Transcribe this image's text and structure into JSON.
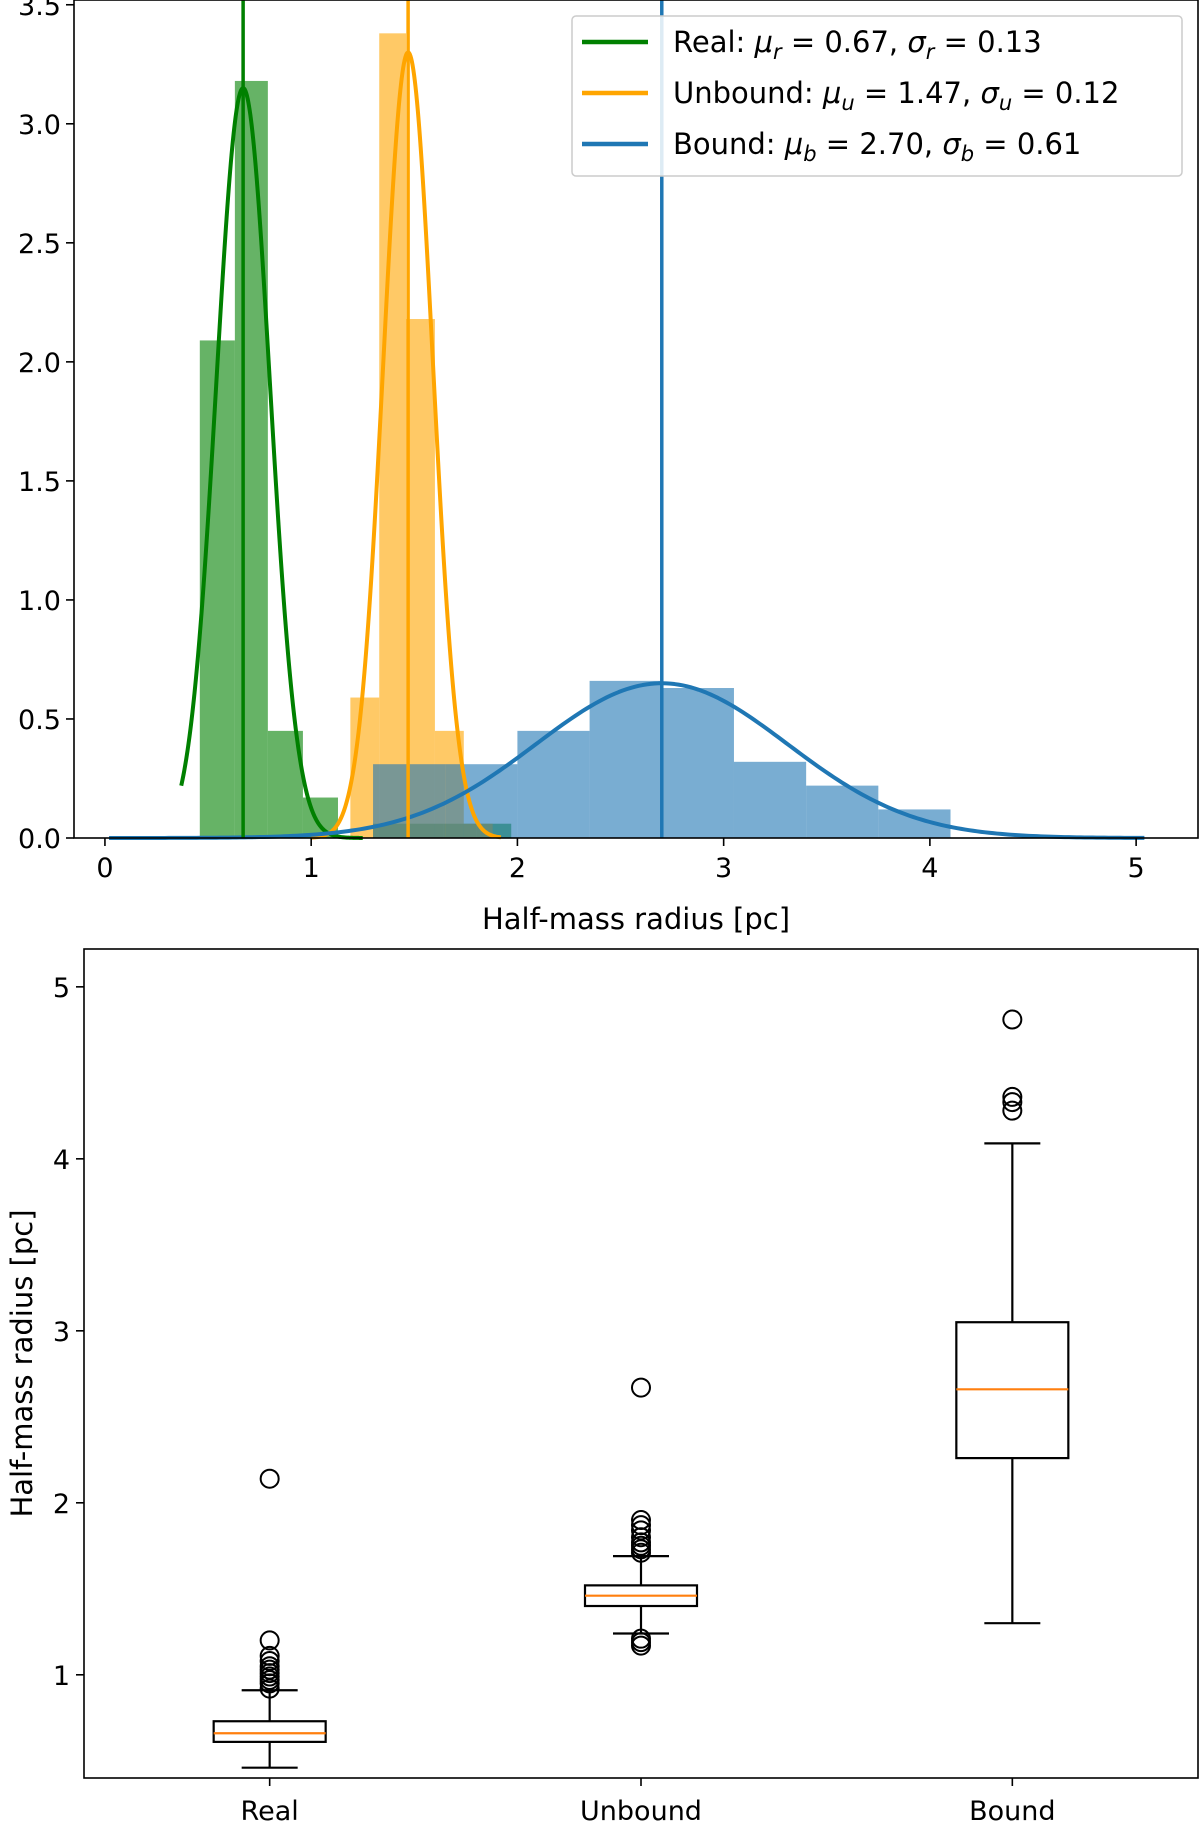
{
  "chart_data": [
    {
      "type": "histogram",
      "xlabel": "Half-mass radius [pc]",
      "ylabel": "",
      "xlim": [
        -0.15,
        5.3
      ],
      "ylim": [
        0,
        3.52
      ],
      "xticks": [
        0,
        1,
        2,
        3,
        4,
        5
      ],
      "yticks": [
        0.0,
        0.5,
        1.0,
        1.5,
        2.0,
        2.5,
        3.0,
        3.5
      ],
      "ytick_labels": [
        "0.0",
        "0.5",
        "1.0",
        "1.5",
        "2.0",
        "2.5",
        "3.0",
        "3.5"
      ],
      "legend_position": "top-right",
      "series": [
        {
          "name": "Real",
          "color": "#008000",
          "bar_alpha": 0.6,
          "legend": {
            "name": "Real: ",
            "mu_sym": "μ",
            "mu_sub": "r",
            "mu_val": " = 0.67,  ",
            "sigma_sym": "σ",
            "sigma_sub": "r",
            "sigma_val": " = 0.13"
          },
          "mu": 0.67,
          "sigma": 0.13,
          "amplitude": 3.15,
          "curve_range": [
            0.37,
            1.25
          ],
          "bins": [
            {
              "x0": 0.46,
              "x1": 0.63,
              "h": 2.09
            },
            {
              "x0": 0.63,
              "x1": 0.79,
              "h": 3.18
            },
            {
              "x0": 0.79,
              "x1": 0.96,
              "h": 0.45
            },
            {
              "x0": 0.96,
              "x1": 1.13,
              "h": 0.17
            },
            {
              "x0": 1.3,
              "x1": 1.47,
              "h": 0.06
            },
            {
              "x0": 1.47,
              "x1": 1.64,
              "h": 0.06
            },
            {
              "x0": 1.64,
              "x1": 1.8,
              "h": 0.06
            },
            {
              "x0": 1.8,
              "x1": 1.97,
              "h": 0.06
            }
          ]
        },
        {
          "name": "Unbound",
          "color": "#FFA500",
          "bar_alpha": 0.6,
          "legend": {
            "name": "Unbound: ",
            "mu_sym": "μ",
            "mu_sub": "u",
            "mu_val": " = 1.47,  ",
            "sigma_sym": "σ",
            "sigma_sub": "u",
            "sigma_val": " = 0.12"
          },
          "mu": 1.47,
          "sigma": 0.12,
          "amplitude": 3.3,
          "curve_range": [
            1.0,
            1.92
          ],
          "bins": [
            {
              "x0": 1.19,
              "x1": 1.33,
              "h": 0.59
            },
            {
              "x0": 1.33,
              "x1": 1.46,
              "h": 3.38
            },
            {
              "x0": 1.46,
              "x1": 1.6,
              "h": 2.18
            },
            {
              "x0": 1.6,
              "x1": 1.74,
              "h": 0.45
            },
            {
              "x0": 1.74,
              "x1": 1.88,
              "h": 0.06
            }
          ]
        },
        {
          "name": "Bound",
          "color": "#1F77B4",
          "bar_alpha": 0.6,
          "legend": {
            "name": "Bound: ",
            "mu_sym": "μ",
            "mu_sub": "b",
            "mu_val": " = 2.70,  ",
            "sigma_sym": "σ",
            "sigma_sub": "b",
            "sigma_val": " = 0.61"
          },
          "mu": 2.7,
          "sigma": 0.61,
          "amplitude": 0.65,
          "curve_range": [
            0.02,
            5.04
          ],
          "bins": [
            {
              "x0": 1.3,
              "x1": 1.65,
              "h": 0.31
            },
            {
              "x0": 1.65,
              "x1": 2.0,
              "h": 0.31
            },
            {
              "x0": 2.0,
              "x1": 2.35,
              "h": 0.45
            },
            {
              "x0": 2.35,
              "x1": 2.7,
              "h": 0.66
            },
            {
              "x0": 2.7,
              "x1": 3.05,
              "h": 0.63
            },
            {
              "x0": 3.05,
              "x1": 3.4,
              "h": 0.32
            },
            {
              "x0": 3.4,
              "x1": 3.75,
              "h": 0.22
            },
            {
              "x0": 3.75,
              "x1": 4.1,
              "h": 0.12
            }
          ]
        }
      ]
    },
    {
      "type": "box",
      "ylabel": "Half-mass radius [pc]",
      "xlabel": "",
      "ylim": [
        0.4,
        5.22
      ],
      "yticks": [
        1,
        2,
        3,
        4,
        5
      ],
      "ytick_labels": [
        "1",
        "2",
        "3",
        "4",
        "5"
      ],
      "median_color": "#FF7F0E",
      "categories": [
        "Real",
        "Unbound",
        "Bound"
      ],
      "boxes": [
        {
          "name": "Real",
          "whisker_low": 0.46,
          "q1": 0.61,
          "median": 0.66,
          "q3": 0.73,
          "whisker_high": 0.91,
          "outliers": [
            0.92,
            0.95,
            0.97,
            0.99,
            1.01,
            1.03,
            1.05,
            1.08,
            1.11,
            1.2,
            2.14
          ]
        },
        {
          "name": "Unbound",
          "whisker_low": 1.24,
          "q1": 1.4,
          "median": 1.46,
          "q3": 1.52,
          "whisker_high": 1.69,
          "outliers": [
            1.17,
            1.19,
            1.21,
            1.71,
            1.73,
            1.75,
            1.77,
            1.8,
            1.84,
            1.87,
            1.9,
            2.67
          ]
        },
        {
          "name": "Bound",
          "whisker_low": 1.3,
          "q1": 2.26,
          "median": 2.66,
          "q3": 3.05,
          "whisker_high": 4.09,
          "outliers": [
            4.28,
            4.33,
            4.36,
            4.81
          ]
        }
      ]
    }
  ]
}
